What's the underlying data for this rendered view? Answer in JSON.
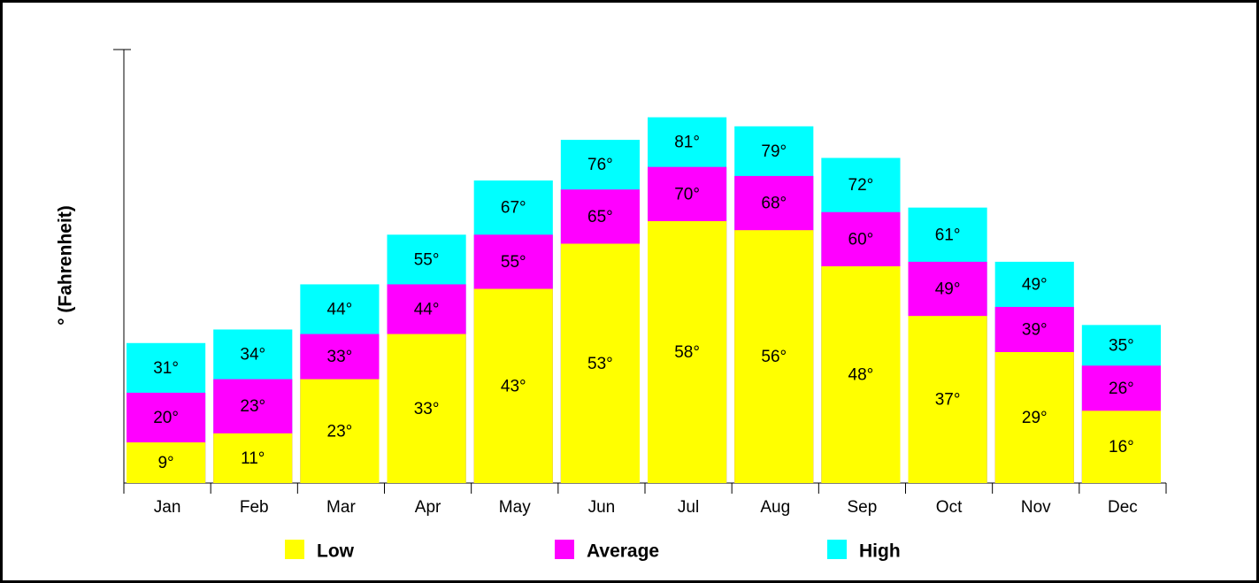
{
  "chart_data": {
    "type": "bar",
    "overlap": true,
    "y_label": "° (Fahrenheit)",
    "categories": [
      "Jan",
      "Feb",
      "Mar",
      "Apr",
      "May",
      "Jun",
      "Jul",
      "Aug",
      "Sep",
      "Oct",
      "Nov",
      "Dec"
    ],
    "series": [
      {
        "name": "Low",
        "color": "#ffff00",
        "values": [
          9,
          11,
          23,
          33,
          43,
          53,
          58,
          56,
          48,
          37,
          29,
          16
        ],
        "value_labels": [
          "9°",
          "11°",
          "23°",
          "33°",
          "43°",
          "53°",
          "58°",
          "56°",
          "48°",
          "37°",
          "29°",
          "16°"
        ]
      },
      {
        "name": "Average",
        "color": "#ff00ff",
        "values": [
          20,
          23,
          33,
          44,
          55,
          65,
          70,
          68,
          60,
          49,
          39,
          26
        ],
        "value_labels": [
          "20°",
          "23°",
          "33°",
          "44°",
          "55°",
          "65°",
          "70°",
          "68°",
          "60°",
          "49°",
          "39°",
          "26°"
        ]
      },
      {
        "name": "High",
        "color": "#00ffff",
        "values": [
          31,
          34,
          44,
          55,
          67,
          76,
          81,
          79,
          72,
          61,
          49,
          35
        ],
        "value_labels": [
          "31°",
          "34°",
          "44°",
          "55°",
          "67°",
          "76°",
          "81°",
          "79°",
          "72°",
          "61°",
          "49°",
          "35°"
        ]
      }
    ],
    "ylim": [
      0,
      96
    ]
  }
}
